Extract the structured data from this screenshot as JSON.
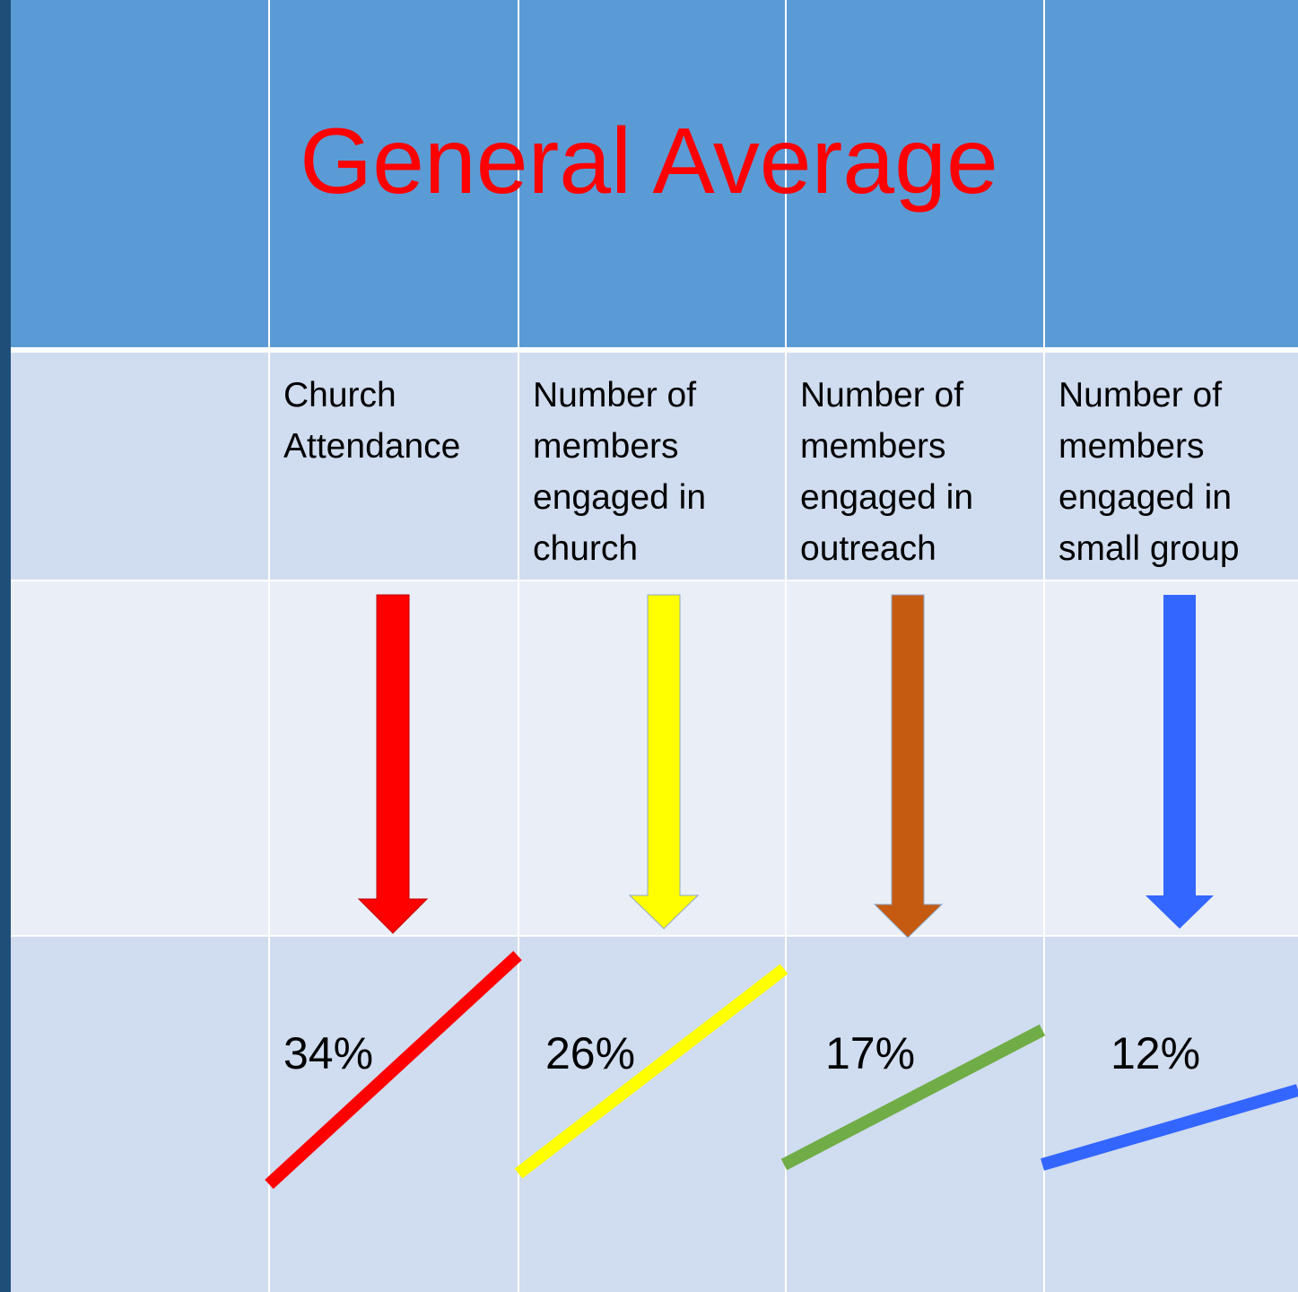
{
  "title": "General Average",
  "table": {
    "headers": [
      "Church Attendance",
      "Number of members engaged in church",
      "Number of members engaged in outreach",
      "Number of members engaged in small group"
    ],
    "values": [
      "34%",
      "26%",
      "17%",
      "12%"
    ]
  }
}
